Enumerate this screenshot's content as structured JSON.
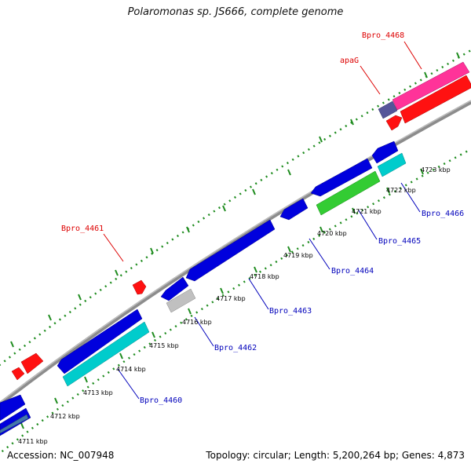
{
  "title": "Polaromonas sp. JS666, complete genome",
  "footer": {
    "accession": "Accession: NC_007948",
    "summary": "Topology: circular; Length: 5,200,264 bp; Genes: 4,873"
  },
  "colors": {
    "backbone": "#8c8c8c",
    "dots": "#1f8c1f",
    "forward_label": "#dd0000",
    "reverse_label": "#0000bb"
  },
  "ticks": [
    {
      "label": "4711 kbp"
    },
    {
      "label": "4712 kbp"
    },
    {
      "label": "4713 kbp"
    },
    {
      "label": "4714 kbp"
    },
    {
      "label": "4715 kbp"
    },
    {
      "label": "4716 kbp"
    },
    {
      "label": "4717 kbp"
    },
    {
      "label": "4718 kbp"
    },
    {
      "label": "4719 kbp"
    },
    {
      "label": "4720 kbp"
    },
    {
      "label": "4721 kbp"
    },
    {
      "label": "4722 kbp"
    },
    {
      "label": "4723 kbp"
    }
  ],
  "labels": [
    {
      "text": "Bpro_4468",
      "strand": "forward"
    },
    {
      "text": "apaG",
      "strand": "forward"
    },
    {
      "text": "Bpro_4461",
      "strand": "forward"
    },
    {
      "text": "Bpro_4466",
      "strand": "reverse"
    },
    {
      "text": "Bpro_4465",
      "strand": "reverse"
    },
    {
      "text": "Bpro_4464",
      "strand": "reverse"
    },
    {
      "text": "Bpro_4463",
      "strand": "reverse"
    },
    {
      "text": "Bpro_4462",
      "strand": "reverse"
    },
    {
      "text": "Bpro_4460",
      "strand": "reverse"
    }
  ]
}
